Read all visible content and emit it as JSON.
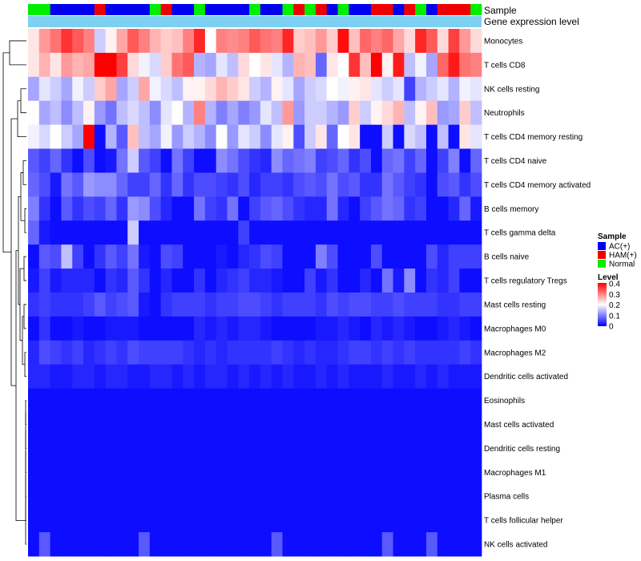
{
  "chart_data": {
    "type": "heatmap",
    "annotation_labels": {
      "sample": "Sample",
      "gene_expression": "Gene expression level"
    },
    "legend_titles": {
      "sample": "Sample",
      "level": "Level"
    },
    "sample_groups": [
      "AC(+)",
      "HAM(+)",
      "Normal"
    ],
    "group_colors": {
      "AC(+)": "#0000ee",
      "HAM(+)": "#ee0000",
      "Normal": "#00ee00"
    },
    "expression_color": "#7dd0f2",
    "level_scale": {
      "ticks": [
        "0.4",
        "0.3",
        "0.2",
        "0.1",
        "0"
      ],
      "min": 0,
      "max": 0.4,
      "colors": {
        "low": "#0000ff",
        "mid": "#ffffff",
        "high": "#ff0000"
      }
    },
    "columns": [
      "Normal",
      "Normal",
      "AC(+)",
      "AC(+)",
      "AC(+)",
      "AC(+)",
      "HAM(+)",
      "AC(+)",
      "AC(+)",
      "AC(+)",
      "AC(+)",
      "Normal",
      "HAM(+)",
      "AC(+)",
      "AC(+)",
      "Normal",
      "AC(+)",
      "AC(+)",
      "AC(+)",
      "AC(+)",
      "Normal",
      "AC(+)",
      "AC(+)",
      "Normal",
      "HAM(+)",
      "Normal",
      "HAM(+)",
      "AC(+)",
      "Normal",
      "AC(+)",
      "AC(+)",
      "HAM(+)",
      "HAM(+)",
      "AC(+)",
      "HAM(+)",
      "Normal",
      "AC(+)",
      "HAM(+)",
      "HAM(+)",
      "HAM(+)",
      "Normal"
    ],
    "rows": [
      "Monocytes",
      "T cells CD8",
      "NK cells resting",
      "Neutrophils",
      "T cells CD4 memory resting",
      "T cells CD4 naive",
      "T cells CD4 memory activated",
      "B cells memory",
      "T cells gamma delta",
      "B cells naive",
      "T cells regulatory  Tregs",
      "Mast cells resting",
      "Macrophages M0",
      "Macrophages M2",
      "Dendritic cells activated",
      "Eosinophils",
      "Mast cells activated",
      "Dendritic cells resting",
      "Macrophages M1",
      "Plasma cells",
      "T cells follicular helper",
      "NK cells activated"
    ],
    "values": [
      [
        0.22,
        0.28,
        0.31,
        0.36,
        0.33,
        0.3,
        0.16,
        0.21,
        0.27,
        0.33,
        0.3,
        0.26,
        0.24,
        0.25,
        0.3,
        0.37,
        0.2,
        0.3,
        0.29,
        0.3,
        0.33,
        0.31,
        0.3,
        0.37,
        0.24,
        0.25,
        0.28,
        0.24,
        0.39,
        0.25,
        0.32,
        0.3,
        0.32,
        0.27,
        0.23,
        0.37,
        0.33,
        0.23,
        0.35,
        0.28,
        0.23
      ],
      [
        0.22,
        0.26,
        0.22,
        0.28,
        0.26,
        0.27,
        0.4,
        0.4,
        0.35,
        0.23,
        0.19,
        0.17,
        0.24,
        0.31,
        0.33,
        0.14,
        0.13,
        0.18,
        0.15,
        0.23,
        0.2,
        0.22,
        0.18,
        0.14,
        0.26,
        0.25,
        0.08,
        0.22,
        0.2,
        0.36,
        0.25,
        0.4,
        0.21,
        0.38,
        0.15,
        0.19,
        0.13,
        0.32,
        0.38,
        0.31,
        0.3
      ],
      [
        0.13,
        0.18,
        0.16,
        0.13,
        0.19,
        0.16,
        0.24,
        0.27,
        0.13,
        0.16,
        0.27,
        0.19,
        0.17,
        0.15,
        0.21,
        0.21,
        0.23,
        0.26,
        0.24,
        0.22,
        0.16,
        0.14,
        0.21,
        0.18,
        0.13,
        0.16,
        0.17,
        0.2,
        0.19,
        0.21,
        0.22,
        0.18,
        0.16,
        0.18,
        0.05,
        0.14,
        0.16,
        0.18,
        0.14,
        0.19,
        0.18
      ],
      [
        0.2,
        0.13,
        0.15,
        0.11,
        0.15,
        0.21,
        0.12,
        0.09,
        0.15,
        0.17,
        0.15,
        0.11,
        0.18,
        0.2,
        0.14,
        0.3,
        0.14,
        0.1,
        0.13,
        0.1,
        0.12,
        0.18,
        0.15,
        0.28,
        0.12,
        0.16,
        0.16,
        0.14,
        0.12,
        0.24,
        0.16,
        0.21,
        0.23,
        0.26,
        0.15,
        0.21,
        0.25,
        0.12,
        0.13,
        0.24,
        0.15
      ],
      [
        0.19,
        0.17,
        0.2,
        0.16,
        0.13,
        0.4,
        0.01,
        0.14,
        0.07,
        0.25,
        0.15,
        0.13,
        0.19,
        0.12,
        0.16,
        0.14,
        0.11,
        0.2,
        0.12,
        0.18,
        0.16,
        0.11,
        0.18,
        0.21,
        0.06,
        0.16,
        0.22,
        0.08,
        0.2,
        0.22,
        0.01,
        0.01,
        0.16,
        0.01,
        0.17,
        0.15,
        0.01,
        0.15,
        0.01,
        0.22,
        0.18
      ],
      [
        0.07,
        0.05,
        0.08,
        0.04,
        0.01,
        0.06,
        0.01,
        0.02,
        0.09,
        0.16,
        0.07,
        0.05,
        0.01,
        0.09,
        0.05,
        0.01,
        0.01,
        0.11,
        0.09,
        0.06,
        0.04,
        0.03,
        0.11,
        0.08,
        0.09,
        0.1,
        0.05,
        0.06,
        0.08,
        0.04,
        0.06,
        0.01,
        0.08,
        0.09,
        0.05,
        0.08,
        0.01,
        0.05,
        0.1,
        0.01,
        0.08
      ],
      [
        0.08,
        0.06,
        0.02,
        0.09,
        0.07,
        0.12,
        0.11,
        0.11,
        0.08,
        0.05,
        0.05,
        0.08,
        0.04,
        0.08,
        0.04,
        0.06,
        0.06,
        0.05,
        0.04,
        0.06,
        0.03,
        0.05,
        0.05,
        0.04,
        0.06,
        0.07,
        0.06,
        0.09,
        0.06,
        0.07,
        0.04,
        0.04,
        0.09,
        0.07,
        0.05,
        0.04,
        0.01,
        0.06,
        0.07,
        0.04,
        0.06
      ],
      [
        0.1,
        0.04,
        0.01,
        0.07,
        0.04,
        0.06,
        0.05,
        0.08,
        0.04,
        0.12,
        0.11,
        0.06,
        0.03,
        0.01,
        0.01,
        0.09,
        0.05,
        0.04,
        0.09,
        0.01,
        0.05,
        0.07,
        0.08,
        0.06,
        0.04,
        0.03,
        0.03,
        0.09,
        0.03,
        0.01,
        0.05,
        0.07,
        0.09,
        0.08,
        0.04,
        0.05,
        0.01,
        0.01,
        0.03,
        0.08,
        0.02
      ],
      [
        0.08,
        0.02,
        0.01,
        0.01,
        0.01,
        0.01,
        0.01,
        0.01,
        0.01,
        0.16,
        0.01,
        0.01,
        0.01,
        0.01,
        0.01,
        0.01,
        0.01,
        0.01,
        0.01,
        0.05,
        0.01,
        0.01,
        0.01,
        0.01,
        0.01,
        0.01,
        0.01,
        0.01,
        0.01,
        0.01,
        0.01,
        0.01,
        0.01,
        0.01,
        0.01,
        0.01,
        0.01,
        0.01,
        0.01,
        0.01,
        0.01
      ],
      [
        0.01,
        0.07,
        0.06,
        0.15,
        0.05,
        0.01,
        0.04,
        0.07,
        0.05,
        0.09,
        0.02,
        0.01,
        0.06,
        0.05,
        0.01,
        0.01,
        0.01,
        0.02,
        0.01,
        0.03,
        0.04,
        0.06,
        0.05,
        0.01,
        0.01,
        0.01,
        0.1,
        0.06,
        0.01,
        0.01,
        0.01,
        0.06,
        0.01,
        0.01,
        0.01,
        0.01,
        0.06,
        0.03,
        0.05,
        0.05,
        0.05
      ],
      [
        0.02,
        0.05,
        0.02,
        0.03,
        0.03,
        0.03,
        0.01,
        0.04,
        0.03,
        0.07,
        0.04,
        0.01,
        0.03,
        0.01,
        0.01,
        0.04,
        0.01,
        0.03,
        0.04,
        0.05,
        0.03,
        0.03,
        0.02,
        0.01,
        0.01,
        0.05,
        0.02,
        0.04,
        0.01,
        0.01,
        0.03,
        0.01,
        0.09,
        0.02,
        0.11,
        0.01,
        0.04,
        0.03,
        0.05,
        0.01,
        0.01
      ],
      [
        0.04,
        0.05,
        0.04,
        0.04,
        0.04,
        0.05,
        0.07,
        0.05,
        0.06,
        0.07,
        0.02,
        0.01,
        0.04,
        0.05,
        0.05,
        0.05,
        0.04,
        0.05,
        0.05,
        0.06,
        0.06,
        0.05,
        0.04,
        0.05,
        0.05,
        0.05,
        0.04,
        0.06,
        0.05,
        0.06,
        0.06,
        0.05,
        0.05,
        0.06,
        0.05,
        0.05,
        0.05,
        0.04,
        0.04,
        0.05,
        0.05
      ],
      [
        0.01,
        0.04,
        0.01,
        0.01,
        0.02,
        0.01,
        0.01,
        0.02,
        0.02,
        0.02,
        0.01,
        0.01,
        0.01,
        0.01,
        0.01,
        0.03,
        0.02,
        0.03,
        0.02,
        0.03,
        0.03,
        0.02,
        0.01,
        0.01,
        0.01,
        0.01,
        0.02,
        0.02,
        0.03,
        0.02,
        0.01,
        0.03,
        0.02,
        0.03,
        0.02,
        0.01,
        0.01,
        0.02,
        0.03,
        0.02,
        0.01
      ],
      [
        0.03,
        0.06,
        0.05,
        0.04,
        0.05,
        0.03,
        0.04,
        0.05,
        0.04,
        0.06,
        0.05,
        0.05,
        0.05,
        0.05,
        0.04,
        0.03,
        0.04,
        0.03,
        0.04,
        0.04,
        0.04,
        0.04,
        0.05,
        0.04,
        0.03,
        0.04,
        0.03,
        0.03,
        0.04,
        0.05,
        0.05,
        0.04,
        0.05,
        0.04,
        0.05,
        0.04,
        0.04,
        0.04,
        0.04,
        0.05,
        0.04
      ],
      [
        0.03,
        0.03,
        0.02,
        0.02,
        0.03,
        0.03,
        0.02,
        0.03,
        0.03,
        0.02,
        0.02,
        0.03,
        0.03,
        0.02,
        0.03,
        0.02,
        0.03,
        0.03,
        0.02,
        0.03,
        0.02,
        0.03,
        0.02,
        0.03,
        0.02,
        0.02,
        0.03,
        0.02,
        0.03,
        0.02,
        0.02,
        0.02,
        0.03,
        0.02,
        0.02,
        0.03,
        0.02,
        0.03,
        0.02,
        0.02,
        0.02
      ],
      [
        0.01,
        0.01,
        0.01,
        0.01,
        0.01,
        0.01,
        0.01,
        0.01,
        0.01,
        0.01,
        0.01,
        0.01,
        0.01,
        0.01,
        0.01,
        0.01,
        0.01,
        0.01,
        0.01,
        0.01,
        0.01,
        0.01,
        0.01,
        0.01,
        0.01,
        0.01,
        0.01,
        0.01,
        0.01,
        0.01,
        0.01,
        0.01,
        0.01,
        0.01,
        0.01,
        0.01,
        0.01,
        0.01,
        0.01,
        0.01,
        0.01
      ],
      [
        0.01,
        0.01,
        0.01,
        0.01,
        0.01,
        0.01,
        0.01,
        0.01,
        0.01,
        0.01,
        0.01,
        0.01,
        0.01,
        0.01,
        0.01,
        0.01,
        0.01,
        0.01,
        0.01,
        0.01,
        0.01,
        0.01,
        0.01,
        0.01,
        0.01,
        0.01,
        0.01,
        0.01,
        0.01,
        0.01,
        0.01,
        0.01,
        0.01,
        0.01,
        0.01,
        0.01,
        0.01,
        0.01,
        0.01,
        0.01,
        0.01
      ],
      [
        0.01,
        0.01,
        0.01,
        0.01,
        0.01,
        0.01,
        0.01,
        0.01,
        0.01,
        0.01,
        0.01,
        0.01,
        0.01,
        0.01,
        0.01,
        0.01,
        0.01,
        0.01,
        0.01,
        0.01,
        0.01,
        0.01,
        0.01,
        0.01,
        0.01,
        0.01,
        0.01,
        0.01,
        0.01,
        0.01,
        0.01,
        0.01,
        0.01,
        0.01,
        0.01,
        0.01,
        0.01,
        0.01,
        0.01,
        0.01,
        0.01
      ],
      [
        0.01,
        0.01,
        0.01,
        0.01,
        0.01,
        0.01,
        0.01,
        0.01,
        0.01,
        0.01,
        0.01,
        0.01,
        0.01,
        0.01,
        0.01,
        0.01,
        0.01,
        0.01,
        0.01,
        0.01,
        0.01,
        0.01,
        0.01,
        0.01,
        0.01,
        0.01,
        0.01,
        0.01,
        0.01,
        0.01,
        0.01,
        0.01,
        0.01,
        0.01,
        0.01,
        0.01,
        0.01,
        0.01,
        0.01,
        0.01,
        0.01
      ],
      [
        0.01,
        0.01,
        0.01,
        0.01,
        0.01,
        0.01,
        0.01,
        0.01,
        0.01,
        0.01,
        0.01,
        0.01,
        0.01,
        0.01,
        0.01,
        0.01,
        0.01,
        0.01,
        0.01,
        0.01,
        0.01,
        0.01,
        0.01,
        0.01,
        0.01,
        0.01,
        0.01,
        0.01,
        0.01,
        0.01,
        0.01,
        0.01,
        0.01,
        0.01,
        0.01,
        0.01,
        0.01,
        0.01,
        0.01,
        0.01,
        0.01
      ],
      [
        0.01,
        0.01,
        0.01,
        0.01,
        0.01,
        0.01,
        0.01,
        0.01,
        0.01,
        0.01,
        0.01,
        0.01,
        0.01,
        0.01,
        0.01,
        0.01,
        0.01,
        0.01,
        0.01,
        0.01,
        0.01,
        0.01,
        0.01,
        0.01,
        0.01,
        0.01,
        0.01,
        0.01,
        0.01,
        0.01,
        0.01,
        0.01,
        0.01,
        0.01,
        0.01,
        0.01,
        0.01,
        0.01,
        0.01,
        0.01,
        0.01
      ],
      [
        0.01,
        0.07,
        0.01,
        0.01,
        0.01,
        0.01,
        0.01,
        0.01,
        0.01,
        0.01,
        0.07,
        0.01,
        0.01,
        0.01,
        0.01,
        0.01,
        0.01,
        0.01,
        0.01,
        0.01,
        0.01,
        0.01,
        0.07,
        0.01,
        0.01,
        0.01,
        0.01,
        0.01,
        0.01,
        0.01,
        0.01,
        0.01,
        0.07,
        0.01,
        0.01,
        0.01,
        0.07,
        0.01,
        0.01,
        0.01,
        0.01
      ]
    ]
  }
}
